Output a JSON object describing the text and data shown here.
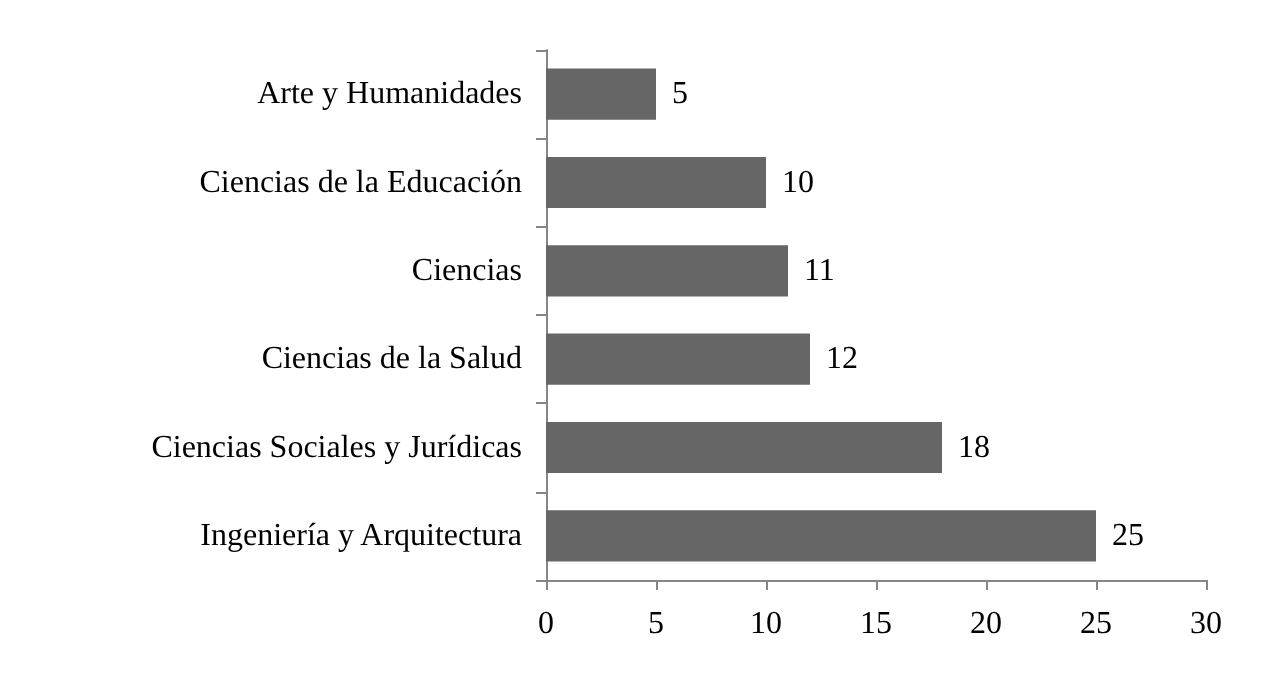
{
  "chart_data": {
    "type": "bar",
    "orientation": "horizontal",
    "categories": [
      "Arte y Humanidades",
      "Ciencias de la Educación",
      "Ciencias",
      "Ciencias de la Salud",
      "Ciencias Sociales y Jurídicas",
      "Ingeniería y Arquitectura"
    ],
    "values": [
      5,
      10,
      11,
      12,
      18,
      25
    ],
    "color": "#666666",
    "xlim": [
      0,
      30
    ],
    "xticks": [
      0,
      5,
      10,
      15,
      20,
      25,
      30
    ],
    "data_labels": true
  }
}
